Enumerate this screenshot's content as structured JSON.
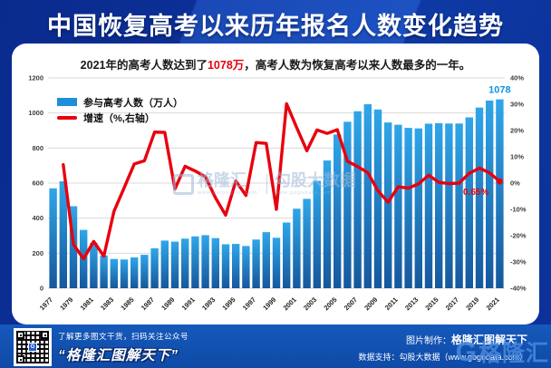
{
  "title": "中国恢复高考以来历年报名人数变化趋势",
  "subtitle": {
    "pre": "2021年的高考人数达到了",
    "highlight": "1078万",
    "post": "，高考人数为恢复高考以来人数最多的一年。"
  },
  "chart_data": {
    "type": "bar",
    "categories": [
      1977,
      1978,
      1979,
      1980,
      1981,
      1982,
      1983,
      1984,
      1985,
      1986,
      1987,
      1988,
      1989,
      1990,
      1991,
      1992,
      1993,
      1994,
      1995,
      1996,
      1997,
      1998,
      1999,
      2000,
      2001,
      2002,
      2003,
      2004,
      2005,
      2006,
      2007,
      2008,
      2009,
      2010,
      2011,
      2012,
      2013,
      2014,
      2015,
      2016,
      2017,
      2018,
      2019,
      2020,
      2021
    ],
    "series": [
      {
        "name": "参与高考人数（万人）",
        "type": "bar",
        "axis": "left",
        "values": [
          570,
          610,
          468,
          333,
          259,
          187,
          167,
          164,
          176,
          191,
          228,
          272,
          266,
          283,
          296,
          303,
          286,
          251,
          253,
          241,
          278,
          320,
          288,
          375,
          454,
          510,
          613,
          729,
          877,
          950,
          1010,
          1050,
          1020,
          946,
          933,
          915,
          912,
          939,
          942,
          940,
          940,
          975,
          1031,
          1071,
          1078
        ]
      },
      {
        "name": "增速（%,右轴）",
        "type": "line",
        "axis": "right",
        "values": [
          null,
          7.0,
          -23.3,
          -28.8,
          -22.2,
          -27.8,
          -10.7,
          -1.8,
          7.3,
          8.5,
          19.4,
          19.3,
          -2.2,
          6.4,
          4.6,
          2.4,
          -5.6,
          -12.2,
          0.8,
          -4.7,
          15.4,
          15.1,
          -10.0,
          30.2,
          21.1,
          12.3,
          20.2,
          18.9,
          20.3,
          8.3,
          6.3,
          4.0,
          -2.9,
          -7.3,
          -1.4,
          -1.9,
          -0.3,
          3.0,
          0.3,
          -0.2,
          0.0,
          3.7,
          5.7,
          3.9,
          0.65
        ]
      }
    ],
    "left_axis": {
      "min": 0,
      "max": 1200,
      "step": 200
    },
    "right_axis": {
      "min": -40,
      "max": 40,
      "step": 10,
      "suffix": "%"
    },
    "grid": true,
    "legend_position": "top-left",
    "annotations": {
      "last_bar_label": "1078",
      "last_point_label": "0.65%"
    }
  },
  "colors": {
    "bar_top": "#2fa6e9",
    "bar_bottom": "#16579c",
    "line": "#e8000d",
    "grid": "#d8d8d8",
    "axis_text": "#3c3c3c",
    "bar_label": "#0f93e8",
    "point_label": "#e8000d"
  },
  "watermark": {
    "brand1": "格隆汇",
    "brand1_url": "www.gelonghui.com",
    "brand2": "勾股大数据",
    "brand2_url": "www.gogudata.com"
  },
  "footer": {
    "qr_hint_line": "了解更多图文干货，扫码关注公众号",
    "brand_quote": "“格隆汇图解天下”",
    "credit_label": "图片制作：",
    "credit_value": "格隆汇图解天下",
    "data_label": "数据支持：勾股大数据",
    "data_url": "（www.gogudata.com）",
    "logo_letter": "G",
    "logo_text": "格隆汇"
  }
}
